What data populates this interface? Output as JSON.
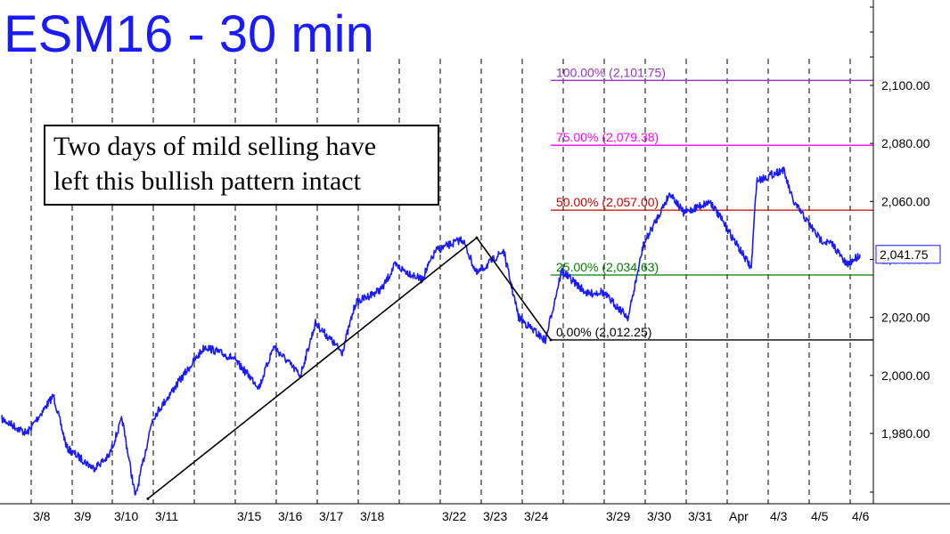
{
  "chart_data": {
    "type": "line",
    "title": "ESM16 - 30 min",
    "annotation": [
      "Two days of mild selling have",
      "left this bullish pattern intact"
    ],
    "xlabel": "",
    "ylabel": "",
    "ylim": [
      1958,
      2112
    ],
    "y_ticks": [
      "2,100.00",
      "2,080.00",
      "2,060.00",
      "2,040.00",
      "2,020.00",
      "2,000.00",
      "1,980.00"
    ],
    "y_tick_values": [
      2100,
      2080,
      2060,
      2040,
      2020,
      2000,
      1980
    ],
    "x_ticks": [
      "3/8",
      "3/9",
      "3/10",
      "3/11",
      "3/15",
      "3/16",
      "3/17",
      "3/18",
      "3/22",
      "3/23",
      "3/24",
      "3/29",
      "3/30",
      "3/31",
      "Apr",
      "4/3",
      "4/5",
      "4/6"
    ],
    "last_price": 2041.75,
    "last_price_label": "2,041.75",
    "fib_levels": [
      {
        "label": "100.00% (2,101.75)",
        "value": 2101.75,
        "color": "#9933cc"
      },
      {
        "label": "75.00% (2,079.38)",
        "value": 2079.38,
        "color": "#ff00ff"
      },
      {
        "label": "50.00% (2,057.00)",
        "value": 2057.0,
        "color": "#cc0000"
      },
      {
        "label": "25.00% (2,034.63)",
        "value": 2034.63,
        "color": "#008000"
      },
      {
        "label": "0.00% (2,012.25)",
        "value": 2012.25,
        "color": "#000000"
      }
    ],
    "pattern_points": [
      {
        "x": "3/10",
        "y": 1957.5
      },
      {
        "x": "3/22",
        "y": 2047.5
      },
      {
        "x": "3/24",
        "y": 2012.25
      }
    ],
    "series": [
      {
        "color": "#1a1aff",
        "x": [
          "3/7",
          "3/8",
          "3/8",
          "3/9",
          "3/9",
          "3/10",
          "3/10",
          "3/10",
          "3/11",
          "3/11",
          "3/14",
          "3/15",
          "3/15",
          "3/16",
          "3/16",
          "3/17",
          "3/17",
          "3/18",
          "3/18",
          "3/21",
          "3/21",
          "3/22",
          "3/22",
          "3/23",
          "3/23",
          "3/24",
          "3/24",
          "3/28",
          "3/28",
          "3/29",
          "3/29",
          "3/30",
          "3/30",
          "3/31",
          "3/31",
          "4/1",
          "4/1",
          "4/3",
          "4/3",
          "4/4",
          "4/4",
          "4/5",
          "4/5",
          "4/5"
        ],
        "values": [
          1985,
          1980,
          1993,
          1975,
          1968,
          1972,
          1985,
          1958,
          1985,
          1998,
          2010,
          2006,
          1996,
          2010,
          2000,
          2018,
          2008,
          2025,
          2030,
          2038,
          2033,
          2043,
          2047,
          2035,
          2043,
          2020,
          2012,
          2036,
          2028,
          2029,
          2020,
          2045,
          2063,
          2056,
          2060,
          2052,
          2037,
          2067,
          2071,
          2060,
          2047,
          2045,
          2038,
          2041.75
        ]
      }
    ]
  }
}
